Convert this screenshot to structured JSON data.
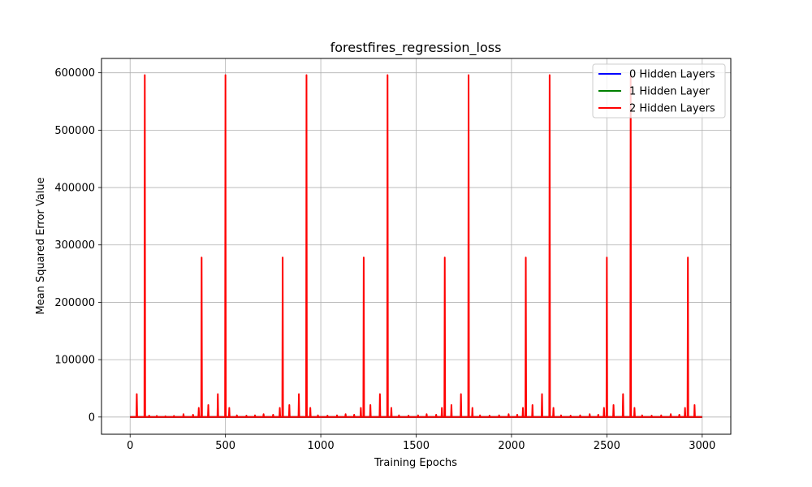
{
  "chart_data": {
    "type": "line",
    "title": "forestfires_regression_loss",
    "xlabel": "Training Epochs",
    "ylabel": "Mean Squared Error Value",
    "xlim": [
      -150,
      3150
    ],
    "ylim": [
      -30000,
      625000
    ],
    "xticks": [
      0,
      500,
      1000,
      1500,
      2000,
      2500,
      3000
    ],
    "yticks": [
      0,
      100000,
      200000,
      300000,
      400000,
      500000,
      600000
    ],
    "grid": true,
    "legend_position": "top-right",
    "series": [
      {
        "name": "0 Hidden Layers",
        "color": "#0000ff",
        "baseline": 0,
        "x_end": 3000,
        "spikes": []
      },
      {
        "name": "1 Hidden Layer",
        "color": "#008000",
        "baseline": 0,
        "x_end": 3000,
        "spikes": []
      },
      {
        "name": "2 Hidden Layers",
        "color": "#ff0000",
        "baseline": 0,
        "x_end": 3000,
        "spikes": [
          [
            35,
            40000
          ],
          [
            77,
            596000
          ],
          [
            100,
            2500
          ],
          [
            140,
            2000
          ],
          [
            185,
            1500
          ],
          [
            230,
            2000
          ],
          [
            280,
            5000
          ],
          [
            330,
            4000
          ],
          [
            360,
            16000
          ],
          [
            375,
            278000
          ],
          [
            410,
            21000
          ],
          [
            460,
            40000
          ],
          [
            500,
            596000
          ],
          [
            520,
            16000
          ],
          [
            560,
            3000
          ],
          [
            610,
            2500
          ],
          [
            655,
            3000
          ],
          [
            700,
            5000
          ],
          [
            750,
            4000
          ],
          [
            785,
            16000
          ],
          [
            800,
            278000
          ],
          [
            835,
            21000
          ],
          [
            885,
            40000
          ],
          [
            925,
            596000
          ],
          [
            945,
            16000
          ],
          [
            985,
            3000
          ],
          [
            1035,
            2500
          ],
          [
            1085,
            3000
          ],
          [
            1130,
            5000
          ],
          [
            1175,
            4000
          ],
          [
            1210,
            16000
          ],
          [
            1225,
            278000
          ],
          [
            1260,
            21000
          ],
          [
            1310,
            40000
          ],
          [
            1350,
            596000
          ],
          [
            1370,
            16000
          ],
          [
            1410,
            3000
          ],
          [
            1460,
            2500
          ],
          [
            1510,
            3000
          ],
          [
            1555,
            5000
          ],
          [
            1605,
            4000
          ],
          [
            1635,
            16000
          ],
          [
            1650,
            278000
          ],
          [
            1685,
            21000
          ],
          [
            1735,
            40000
          ],
          [
            1775,
            596000
          ],
          [
            1795,
            16000
          ],
          [
            1835,
            3000
          ],
          [
            1885,
            2500
          ],
          [
            1935,
            3000
          ],
          [
            1985,
            5000
          ],
          [
            2030,
            4000
          ],
          [
            2060,
            16000
          ],
          [
            2075,
            278000
          ],
          [
            2110,
            21000
          ],
          [
            2160,
            40000
          ],
          [
            2200,
            596000
          ],
          [
            2220,
            16000
          ],
          [
            2260,
            3000
          ],
          [
            2310,
            2500
          ],
          [
            2360,
            3000
          ],
          [
            2410,
            5000
          ],
          [
            2455,
            4000
          ],
          [
            2485,
            16000
          ],
          [
            2500,
            278000
          ],
          [
            2535,
            21000
          ],
          [
            2585,
            40000
          ],
          [
            2625,
            596000
          ],
          [
            2645,
            16000
          ],
          [
            2685,
            3000
          ],
          [
            2735,
            2500
          ],
          [
            2785,
            3000
          ],
          [
            2835,
            5000
          ],
          [
            2880,
            4000
          ],
          [
            2910,
            16000
          ],
          [
            2925,
            278000
          ],
          [
            2960,
            21000
          ]
        ]
      }
    ]
  }
}
